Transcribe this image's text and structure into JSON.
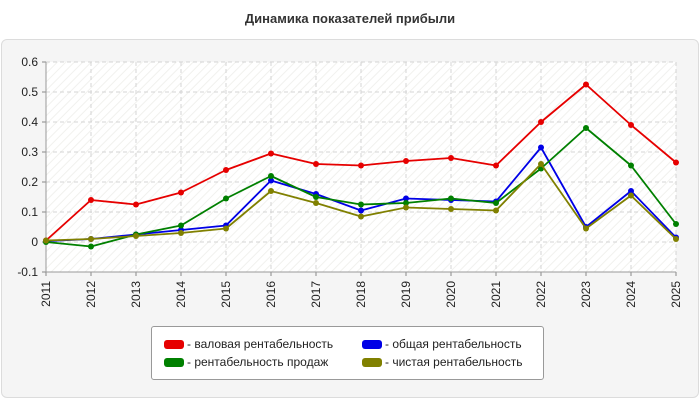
{
  "chart_data": {
    "type": "line",
    "title": "Динамика показателей прибыли",
    "xlabel": "",
    "ylabel": "",
    "x": [
      "2011",
      "2012",
      "2013",
      "2014",
      "2015",
      "2016",
      "2017",
      "2018",
      "2019",
      "2020",
      "2021",
      "2022",
      "2023",
      "2024",
      "2025"
    ],
    "ylim": [
      -0.1,
      0.6
    ],
    "yticks": [
      "-0.1",
      "0",
      "0.1",
      "0.2",
      "0.3",
      "0.4",
      "0.5",
      "0.6"
    ],
    "grid": true,
    "legend_position": "bottom",
    "series": [
      {
        "name": "- валовая рентабельность",
        "color": "#e60000",
        "values": [
          0.005,
          0.14,
          0.125,
          0.165,
          0.24,
          0.295,
          0.26,
          0.255,
          0.27,
          0.28,
          0.255,
          0.4,
          0.525,
          0.39,
          0.265
        ]
      },
      {
        "name": "- общая рентабельность",
        "color": "#0000e6",
        "values": [
          0.003,
          0.01,
          0.025,
          0.04,
          0.055,
          0.205,
          0.16,
          0.105,
          0.145,
          0.14,
          0.135,
          0.315,
          0.05,
          0.17,
          0.015
        ]
      },
      {
        "name": "- рентабельность продаж",
        "color": "#008000",
        "values": [
          0.0,
          -0.015,
          0.025,
          0.055,
          0.145,
          0.22,
          0.15,
          0.125,
          0.13,
          0.145,
          0.13,
          0.245,
          0.38,
          0.255,
          0.06
        ]
      },
      {
        "name": "- чистая рентабельность",
        "color": "#808000",
        "values": [
          0.005,
          0.01,
          0.02,
          0.03,
          0.045,
          0.17,
          0.13,
          0.085,
          0.115,
          0.11,
          0.105,
          0.26,
          0.045,
          0.155,
          0.01
        ]
      }
    ]
  }
}
